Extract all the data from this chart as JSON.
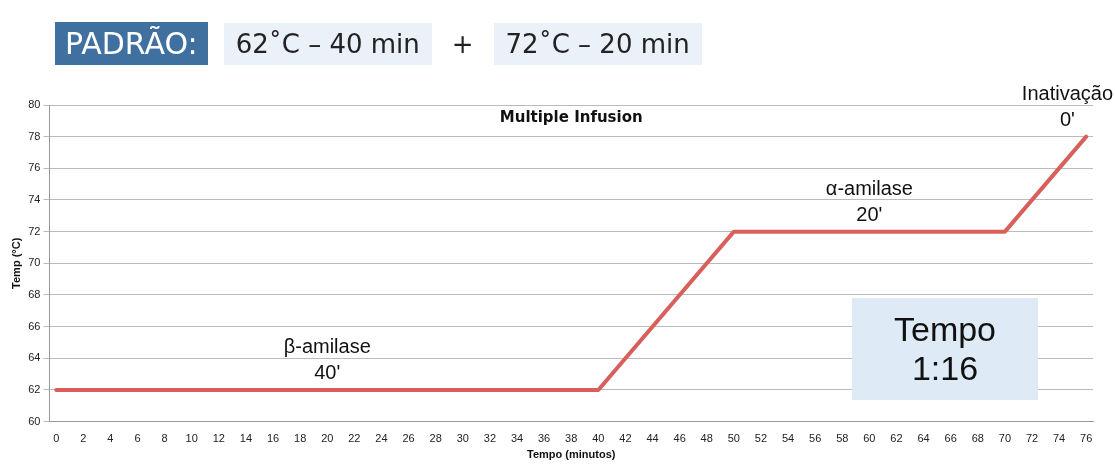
{
  "chart_data": {
    "type": "line",
    "title": "Multiple Infusion",
    "xlabel": "Tempo (minutos)",
    "ylabel": "Temp (°C)",
    "x": [
      0,
      40,
      50,
      70,
      76
    ],
    "series": [
      {
        "color": "#d9605a",
        "values": [
          62,
          62,
          72,
          72,
          78
        ]
      }
    ],
    "xlim": [
      -0.5,
      76.5
    ],
    "xticks": [
      0,
      2,
      4,
      6,
      8,
      10,
      12,
      14,
      16,
      18,
      20,
      22,
      24,
      26,
      28,
      30,
      32,
      34,
      36,
      38,
      40,
      42,
      44,
      46,
      48,
      50,
      52,
      54,
      56,
      58,
      60,
      62,
      64,
      66,
      68,
      70,
      72,
      74,
      76
    ],
    "ylim": [
      60,
      80
    ],
    "yticks": [
      60,
      62,
      64,
      66,
      68,
      70,
      72,
      74,
      76,
      78,
      80
    ],
    "grid": "y",
    "legend": false,
    "marker": "none",
    "line_style": "solid",
    "annotations": [
      "PADRÃO:",
      "62˚C – 40 min",
      "+",
      "72˚C – 20 min",
      "Tempo\n1:16",
      {
        "text": "β-amilase\n40'",
        "x": 20,
        "y": 62
      },
      {
        "text": "α-amilase\n20'",
        "x": 60,
        "y": 72
      },
      {
        "text": "Inativação\n0'",
        "x": 76,
        "y": 78
      }
    ]
  }
}
